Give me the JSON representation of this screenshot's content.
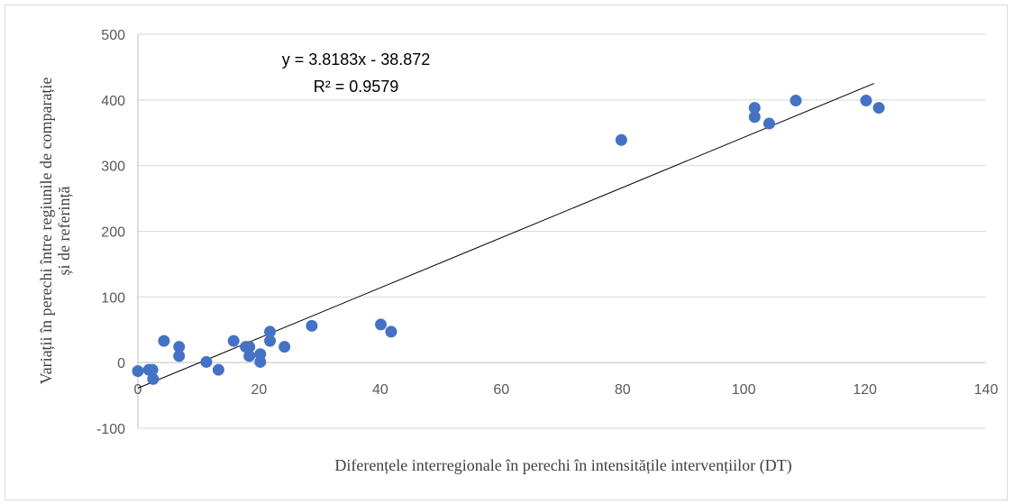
{
  "chart_data": {
    "type": "scatter",
    "xlabel": "Diferențele interregionale în perechi în intensitățile intervențiilor (DT)",
    "ylabel_line1": "Variații  în perechi  între regiunile  de comparație",
    "ylabel_line2": "și de referință",
    "xlim": [
      0,
      140
    ],
    "ylim": [
      -100,
      500
    ],
    "x_ticks": [
      0,
      20,
      40,
      60,
      80,
      100,
      120,
      140
    ],
    "y_ticks": [
      -100,
      0,
      100,
      200,
      300,
      400,
      500
    ],
    "x_tick_labels": [
      "0",
      "20",
      "40",
      "60",
      "80",
      "100",
      "120",
      "140"
    ],
    "y_tick_labels": [
      "-100",
      "0",
      "100",
      "200",
      "300",
      "400",
      "500"
    ],
    "grid": "horizontal",
    "points": [
      {
        "x": 0.0,
        "y": -13
      },
      {
        "x": 1.8,
        "y": -11
      },
      {
        "x": 2.4,
        "y": -11
      },
      {
        "x": 2.5,
        "y": -25
      },
      {
        "x": 4.3,
        "y": 33
      },
      {
        "x": 6.8,
        "y": 24
      },
      {
        "x": 6.8,
        "y": 10
      },
      {
        "x": 11.3,
        "y": 1
      },
      {
        "x": 13.3,
        "y": -11
      },
      {
        "x": 15.8,
        "y": 33
      },
      {
        "x": 17.8,
        "y": 24
      },
      {
        "x": 18.4,
        "y": 24
      },
      {
        "x": 18.4,
        "y": 10
      },
      {
        "x": 20.2,
        "y": 13
      },
      {
        "x": 20.2,
        "y": 1
      },
      {
        "x": 21.8,
        "y": 47
      },
      {
        "x": 21.8,
        "y": 33
      },
      {
        "x": 24.2,
        "y": 24
      },
      {
        "x": 28.7,
        "y": 56
      },
      {
        "x": 40.1,
        "y": 58
      },
      {
        "x": 41.8,
        "y": 47
      },
      {
        "x": 79.8,
        "y": 339
      },
      {
        "x": 101.8,
        "y": 388
      },
      {
        "x": 101.8,
        "y": 374
      },
      {
        "x": 104.2,
        "y": 364
      },
      {
        "x": 108.6,
        "y": 399
      },
      {
        "x": 120.2,
        "y": 399
      },
      {
        "x": 122.3,
        "y": 388
      }
    ],
    "trendline": {
      "slope": 3.8183,
      "intercept": -38.872,
      "x_range": [
        0,
        121.5
      ],
      "equation": "y = 3.8183x - 38.872",
      "r_squared": "R² = 0.9579"
    },
    "colors": {
      "marker": "#4472c4",
      "trendline": "#000000",
      "grid": "#d9d9d9",
      "axis": "#bfbfbf",
      "tick_text": "#595959"
    }
  }
}
